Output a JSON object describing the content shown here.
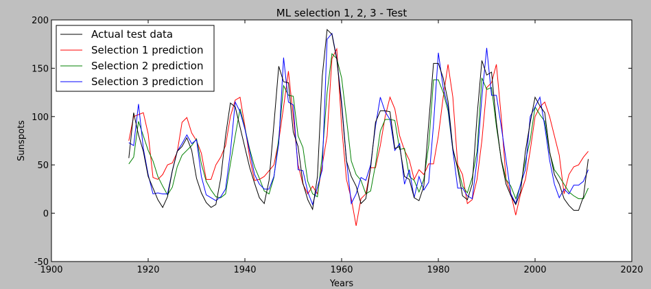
{
  "chart_data": {
    "type": "line",
    "title": "ML selection 1, 2, 3 - Test",
    "xlabel": "Years",
    "ylabel": "Sunspots",
    "xlim": [
      1900,
      2020
    ],
    "ylim": [
      -50,
      200
    ],
    "xticks": [
      1900,
      1920,
      1940,
      1960,
      1980,
      2000,
      2020
    ],
    "yticks": [
      -50,
      0,
      50,
      100,
      150,
      200
    ],
    "grid": false,
    "legend_position": "top-left",
    "x": [
      1916,
      1917,
      1918,
      1919,
      1920,
      1921,
      1922,
      1923,
      1924,
      1925,
      1926,
      1927,
      1928,
      1929,
      1930,
      1931,
      1932,
      1933,
      1934,
      1935,
      1936,
      1937,
      1938,
      1939,
      1940,
      1941,
      1942,
      1943,
      1944,
      1945,
      1946,
      1947,
      1948,
      1949,
      1950,
      1951,
      1952,
      1953,
      1954,
      1955,
      1956,
      1957,
      1958,
      1959,
      1960,
      1961,
      1962,
      1963,
      1964,
      1965,
      1966,
      1967,
      1968,
      1969,
      1970,
      1971,
      1972,
      1973,
      1974,
      1975,
      1976,
      1977,
      1978,
      1979,
      1980,
      1981,
      1982,
      1983,
      1984,
      1985,
      1986,
      1987,
      1988,
      1989,
      1990,
      1991,
      1992,
      1993,
      1994,
      1995,
      1996,
      1997,
      1998,
      1999,
      2000,
      2001,
      2002,
      2003,
      2004,
      2005,
      2006,
      2007,
      2008,
      2009,
      2010,
      2011
    ],
    "series": [
      {
        "name": "Actual test data",
        "color": "#000000",
        "values": [
          57,
          104,
          81,
          64,
          38,
          26,
          14,
          6,
          17,
          44,
          64,
          69,
          78,
          65,
          36,
          21,
          11,
          6,
          9,
          36,
          80,
          114,
          110,
          89,
          68,
          47,
          31,
          16,
          10,
          34,
          92,
          152,
          136,
          135,
          84,
          69,
          31,
          14,
          4,
          38,
          142,
          190,
          185,
          159,
          112,
          54,
          38,
          28,
          10,
          15,
          47,
          94,
          106,
          106,
          105,
          67,
          69,
          38,
          35,
          16,
          13,
          28,
          93,
          155,
          155,
          140,
          116,
          67,
          46,
          18,
          14,
          30,
          100,
          158,
          143,
          146,
          94,
          55,
          30,
          18,
          9,
          22,
          64,
          94,
          120,
          111,
          104,
          64,
          40,
          30,
          15,
          8,
          3,
          3,
          17,
          56
        ]
      },
      {
        "name": "Selection 1 prediction",
        "color": "#ff0000",
        "values": [
          75,
          100,
          102,
          104,
          82,
          37,
          35,
          40,
          50,
          52,
          63,
          94,
          99,
          83,
          75,
          62,
          35,
          35,
          50,
          58,
          70,
          100,
          117,
          120,
          90,
          57,
          34,
          35,
          38,
          44,
          50,
          75,
          110,
          147,
          100,
          50,
          30,
          20,
          28,
          20,
          50,
          80,
          160,
          170,
          90,
          35,
          15,
          -13,
          15,
          20,
          47,
          47,
          70,
          100,
          120,
          108,
          80,
          65,
          55,
          35,
          45,
          40,
          51,
          51,
          80,
          120,
          154,
          120,
          50,
          40,
          10,
          14,
          35,
          75,
          130,
          135,
          154,
          100,
          35,
          20,
          -2,
          20,
          35,
          65,
          100,
          110,
          115,
          100,
          80,
          60,
          20,
          40,
          48,
          50,
          58,
          64
        ]
      },
      {
        "name": "Selection 2 prediction",
        "color": "#008000",
        "values": [
          51,
          58,
          95,
          80,
          65,
          54,
          38,
          28,
          19,
          27,
          48,
          60,
          65,
          70,
          77,
          51,
          33,
          24,
          17,
          16,
          20,
          51,
          80,
          108,
          88,
          66,
          48,
          36,
          23,
          20,
          37,
          78,
          132,
          122,
          121,
          80,
          68,
          33,
          20,
          17,
          60,
          125,
          165,
          160,
          140,
          98,
          54,
          40,
          34,
          20,
          23,
          50,
          85,
          97,
          97,
          96,
          66,
          67,
          38,
          34,
          22,
          35,
          70,
          138,
          138,
          125,
          106,
          65,
          48,
          28,
          21,
          37,
          64,
          140,
          128,
          130,
          90,
          56,
          35,
          28,
          15,
          29,
          54,
          76,
          110,
          102,
          95,
          63,
          45,
          38,
          30,
          22,
          18,
          15,
          15,
          26
        ]
      },
      {
        "name": "Selection 3 prediction",
        "color": "#0000ff",
        "values": [
          73,
          70,
          113,
          67,
          40,
          20,
          21,
          20,
          20,
          44,
          64,
          72,
          81,
          72,
          76,
          38,
          19,
          16,
          13,
          17,
          25,
          63,
          115,
          105,
          87,
          64,
          40,
          30,
          25,
          25,
          38,
          72,
          161,
          115,
          112,
          45,
          44,
          22,
          9,
          27,
          45,
          180,
          186,
          160,
          115,
          55,
          10,
          20,
          37,
          34,
          50,
          90,
          120,
          105,
          97,
          65,
          72,
          30,
          45,
          16,
          38,
          24,
          32,
          92,
          166,
          130,
          110,
          65,
          26,
          26,
          18,
          15,
          55,
          120,
          171,
          122,
          122,
          90,
          55,
          20,
          10,
          30,
          45,
          100,
          110,
          120,
          90,
          55,
          30,
          16,
          25,
          20,
          29,
          29,
          33,
          45
        ]
      }
    ]
  }
}
